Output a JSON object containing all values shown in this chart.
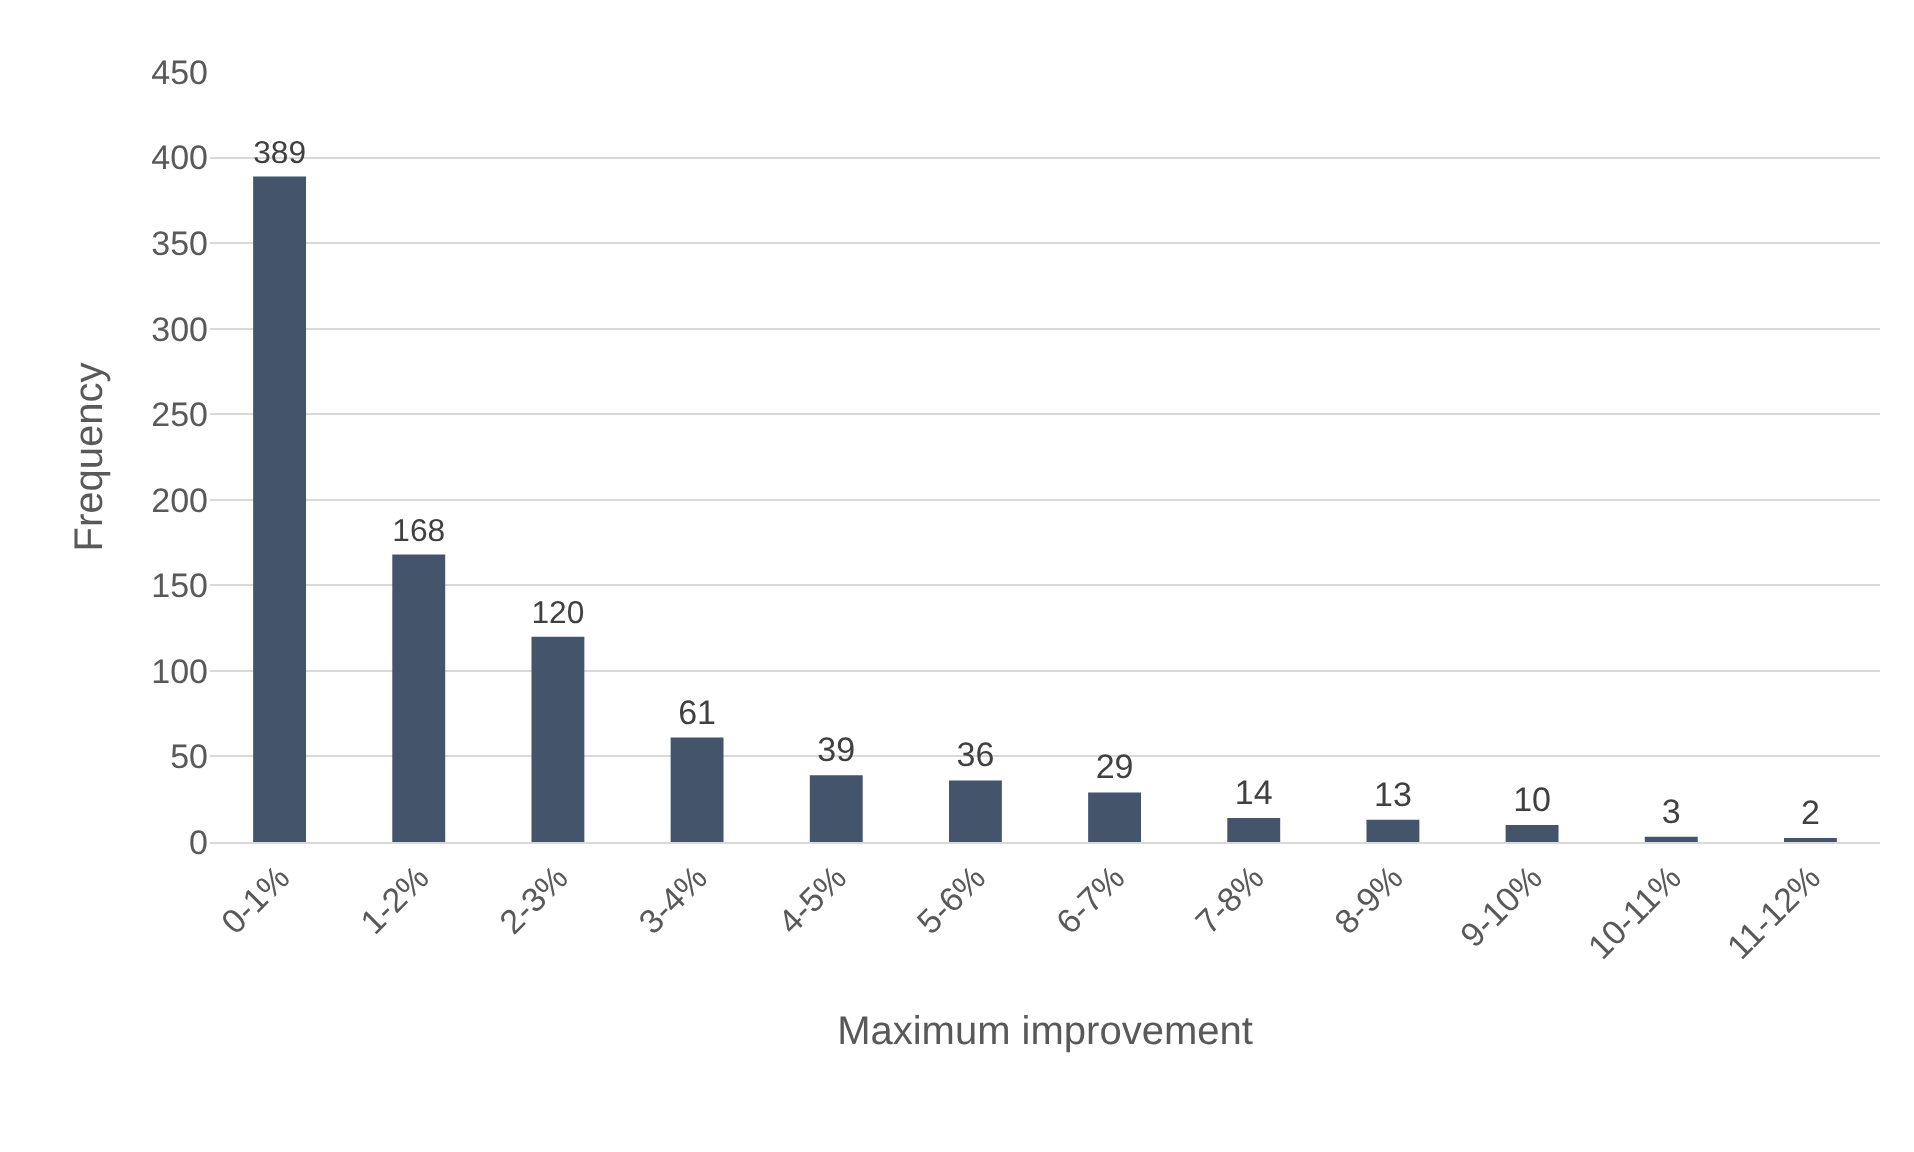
{
  "chart_data": {
    "type": "bar",
    "xlabel": "Maximum improvement",
    "ylabel": "Frequency",
    "categories": [
      "0-1%",
      "1-2%",
      "2-3%",
      "3-4%",
      "4-5%",
      "5-6%",
      "6-7%",
      "7-8%",
      "8-9%",
      "9-10%",
      "10-11%",
      "11-12%"
    ],
    "values": [
      389,
      168,
      120,
      61,
      39,
      36,
      29,
      14,
      13,
      10,
      3,
      2
    ],
    "color": "#44546a",
    "ylim": [
      0,
      450
    ],
    "yticks": [
      0,
      50,
      100,
      150,
      200,
      250,
      300,
      350,
      400,
      450
    ],
    "grid": "y",
    "data_labels": true
  }
}
